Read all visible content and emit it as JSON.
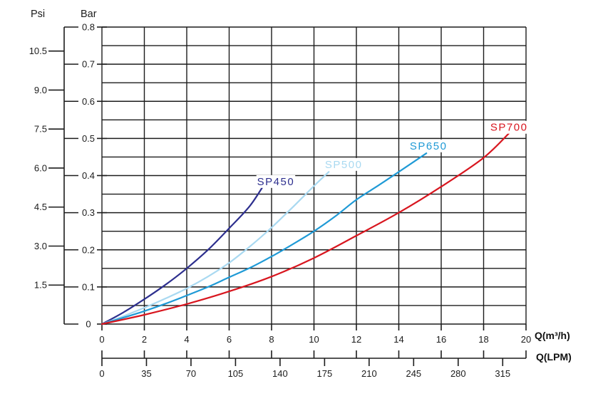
{
  "chart_data": {
    "type": "line",
    "title": "",
    "grid": true,
    "legend": "inline-curve-labels",
    "y_primary": {
      "title": "Bar",
      "min": 0,
      "max": 0.8,
      "minor_step": 0.05,
      "ticks": [
        {
          "label": "0.8",
          "value": 0.8
        },
        {
          "label": "0.7",
          "value": 0.7
        },
        {
          "label": "0.6",
          "value": 0.6
        },
        {
          "label": "0.5",
          "value": 0.5
        },
        {
          "label": "0.4",
          "value": 0.4
        },
        {
          "label": "0.3",
          "value": 0.3
        },
        {
          "label": "0.2",
          "value": 0.2
        },
        {
          "label": "0.1",
          "value": 0.1
        },
        {
          "label": "0",
          "value": 0
        }
      ]
    },
    "y_secondary": {
      "title": "Psi",
      "ticks": [
        {
          "label": "10.5",
          "value": 10.5
        },
        {
          "label": "9.0",
          "value": 9.0
        },
        {
          "label": "7.5",
          "value": 7.5
        },
        {
          "label": "6.0",
          "value": 6.0
        },
        {
          "label": "4.5",
          "value": 4.5
        },
        {
          "label": "3.0",
          "value": 3.0
        },
        {
          "label": "1.5",
          "value": 1.5
        }
      ]
    },
    "x_primary": {
      "label": "Q(m³/h)",
      "min": 0,
      "max": 20,
      "ticks": [
        {
          "label": "0",
          "value": 0
        },
        {
          "label": "2",
          "value": 2
        },
        {
          "label": "4",
          "value": 4
        },
        {
          "label": "6",
          "value": 6
        },
        {
          "label": "8",
          "value": 8
        },
        {
          "label": "10",
          "value": 10
        },
        {
          "label": "12",
          "value": 12
        },
        {
          "label": "14",
          "value": 14
        },
        {
          "label": "16",
          "value": 16
        },
        {
          "label": "18",
          "value": 18
        },
        {
          "label": "20",
          "value": 20
        }
      ]
    },
    "x_secondary": {
      "label": "Q(LPM)",
      "ticks": [
        {
          "label": "0",
          "value": 0
        },
        {
          "label": "35",
          "value": 35
        },
        {
          "label": "70",
          "value": 70
        },
        {
          "label": "105",
          "value": 105
        },
        {
          "label": "140",
          "value": 140
        },
        {
          "label": "175",
          "value": 175
        },
        {
          "label": "210",
          "value": 210
        },
        {
          "label": "245",
          "value": 245
        },
        {
          "label": "280",
          "value": 280
        },
        {
          "label": "315",
          "value": 315
        }
      ]
    },
    "series": [
      {
        "name": "SP450",
        "color": "#2d2f8e",
        "label_pos": [
          8.2,
          0.384
        ],
        "points": [
          [
            0,
            0
          ],
          [
            1,
            0.031
          ],
          [
            2,
            0.067
          ],
          [
            3,
            0.106
          ],
          [
            4,
            0.15
          ],
          [
            5,
            0.2
          ],
          [
            6,
            0.258
          ],
          [
            7,
            0.32
          ],
          [
            7.8,
            0.39
          ]
        ]
      },
      {
        "name": "SP500",
        "color": "#a9d9f1",
        "label_pos": [
          11.4,
          0.43
        ],
        "points": [
          [
            0,
            0
          ],
          [
            1,
            0.021
          ],
          [
            2,
            0.044
          ],
          [
            3,
            0.069
          ],
          [
            4,
            0.096
          ],
          [
            5,
            0.128
          ],
          [
            6,
            0.165
          ],
          [
            7,
            0.21
          ],
          [
            8,
            0.26
          ],
          [
            9,
            0.315
          ],
          [
            10,
            0.372
          ],
          [
            10.7,
            0.41
          ]
        ]
      },
      {
        "name": "SP650",
        "color": "#1f9ad6",
        "label_pos": [
          15.4,
          0.48
        ],
        "points": [
          [
            0,
            0
          ],
          [
            1,
            0.017
          ],
          [
            2,
            0.035
          ],
          [
            3,
            0.055
          ],
          [
            4,
            0.077
          ],
          [
            5,
            0.1
          ],
          [
            6,
            0.126
          ],
          [
            7,
            0.152
          ],
          [
            8,
            0.182
          ],
          [
            9,
            0.215
          ],
          [
            10,
            0.25
          ],
          [
            11,
            0.29
          ],
          [
            12,
            0.335
          ],
          [
            13,
            0.372
          ],
          [
            14,
            0.41
          ],
          [
            15.3,
            0.46
          ]
        ]
      },
      {
        "name": "SP700",
        "color": "#d8161f",
        "label_pos": [
          19.2,
          0.53
        ],
        "points": [
          [
            0,
            0
          ],
          [
            2,
            0.025
          ],
          [
            4,
            0.054
          ],
          [
            6,
            0.088
          ],
          [
            8,
            0.128
          ],
          [
            10,
            0.178
          ],
          [
            12,
            0.238
          ],
          [
            14,
            0.3
          ],
          [
            16,
            0.37
          ],
          [
            18,
            0.448
          ],
          [
            19.3,
            0.52
          ]
        ]
      }
    ]
  }
}
